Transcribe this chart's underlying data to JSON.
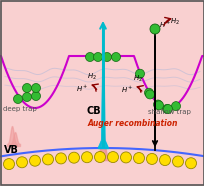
{
  "background_color": "#f9d0d0",
  "border_color": "#555555",
  "cb_label": "CB",
  "vb_label": "VB",
  "deep_trap_label": "deep trap",
  "shallow_trap_label": "shallow trap",
  "auger_label": "Auger recombination",
  "auger_color": "#cc2200",
  "cb_curve_color": "#cc00cc",
  "vb_curve_color": "#4466ff",
  "xrd_peak_color_blue": "#00bbdd",
  "xrd_peak_color_pink": "#ee9999",
  "green_ball_color": "#33bb33",
  "green_ball_edge": "#116611",
  "yellow_ball_color": "#ffdd00",
  "yellow_ball_edge": "#998800",
  "arrow_up_color": "#00bbcc",
  "arrow_down_color": "#111111",
  "figsize": [
    2.05,
    1.86
  ],
  "dpi": 100
}
